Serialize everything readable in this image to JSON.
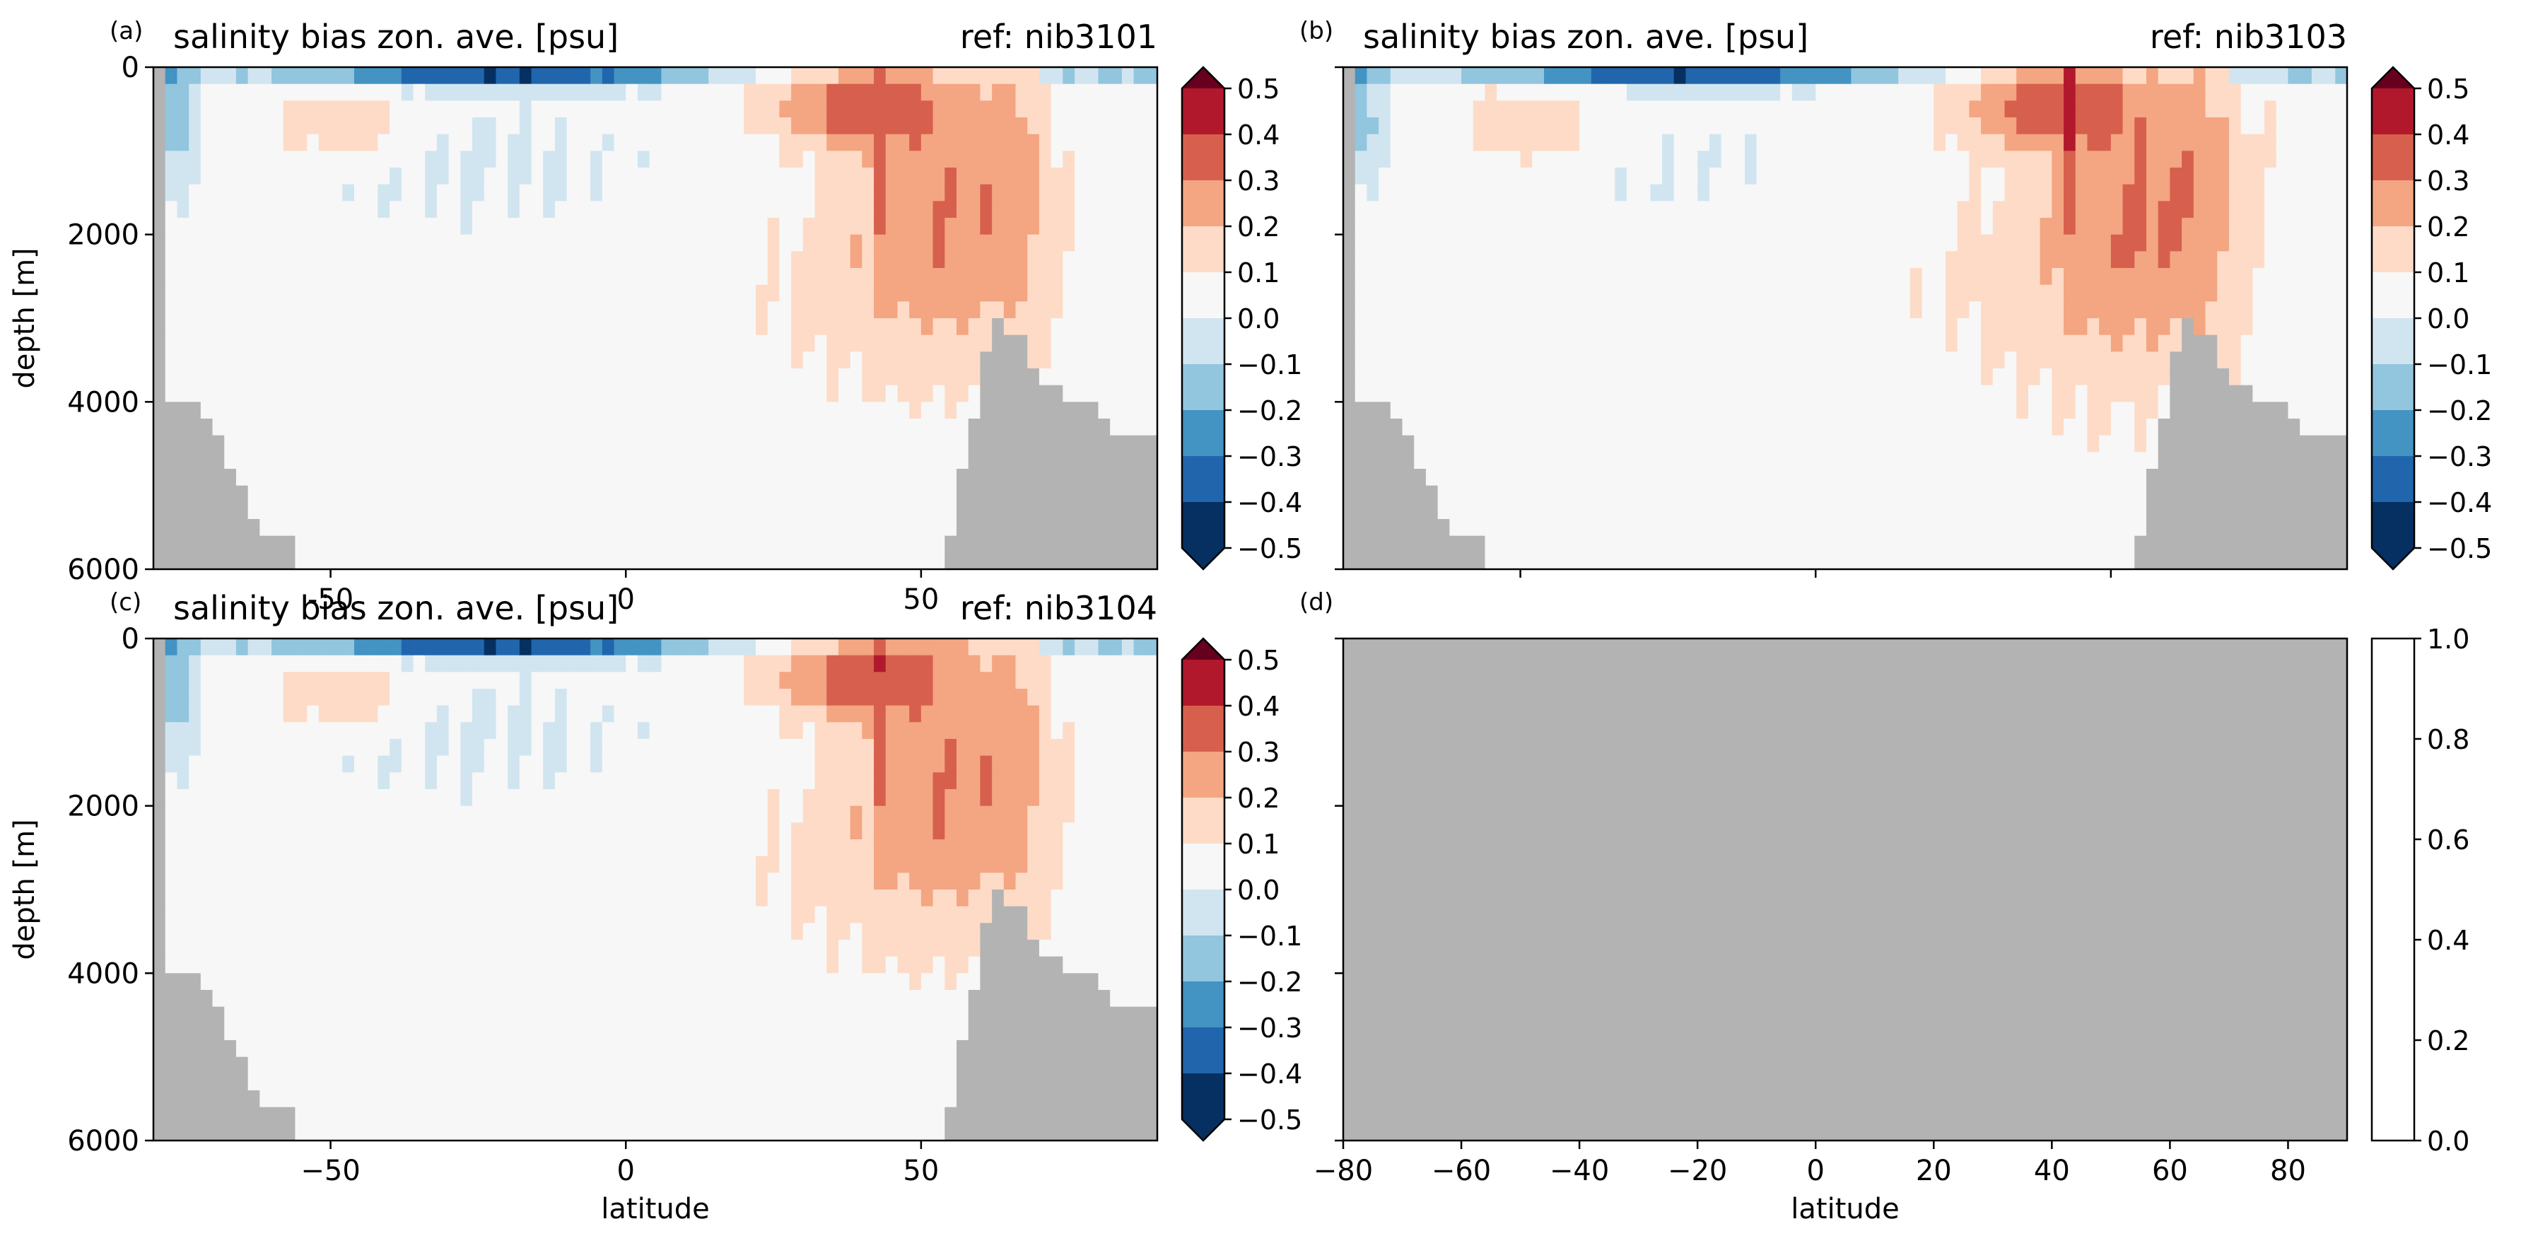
{
  "colors": {
    "land": "#b3b3b3",
    "rdbu_11": [
      "#053061",
      "#2166ac",
      "#4393c3",
      "#92c5de",
      "#d1e5f0",
      "#f7f7f7",
      "#fddbc7",
      "#f4a582",
      "#d6604d",
      "#b2182b",
      "#67001f"
    ]
  },
  "chart_data": [
    {
      "panel": "(a)",
      "type": "heatmap",
      "title": "salinity bias zon. ave. [psu]",
      "subtitle": "ref: nib3101",
      "xlabel": "",
      "ylabel": "depth [m]",
      "xlim": [
        -80,
        90
      ],
      "ylim": [
        6000,
        0
      ],
      "x_ticks": [
        "-50",
        "0",
        "50"
      ],
      "y_ticks": [
        "0",
        "2000",
        "4000",
        "6000"
      ],
      "colorbar": {
        "range": [
          -0.5,
          0.5
        ],
        "ticks": [
          "0.5",
          "0.4",
          "0.3",
          "0.2",
          "0.1",
          "0.0",
          "−0.1",
          "−0.2",
          "−0.3",
          "−0.4",
          "−0.5"
        ],
        "extend": "both"
      }
    },
    {
      "panel": "(b)",
      "type": "heatmap",
      "title": "salinity bias zon. ave. [psu]",
      "subtitle": "ref: nib3103",
      "xlabel": "",
      "ylabel": "",
      "xlim": [
        -80,
        90
      ],
      "ylim": [
        6000,
        0
      ],
      "x_ticks": [],
      "y_ticks": [],
      "colorbar": {
        "range": [
          -0.5,
          0.5
        ],
        "ticks": [
          "0.5",
          "0.4",
          "0.3",
          "0.2",
          "0.1",
          "0.0",
          "−0.1",
          "−0.2",
          "−0.3",
          "−0.4",
          "−0.5"
        ],
        "extend": "both"
      }
    },
    {
      "panel": "(c)",
      "type": "heatmap",
      "title": "salinity bias zon. ave. [psu]",
      "subtitle": "ref: nib3104",
      "xlabel": "latitude",
      "ylabel": "depth [m]",
      "xlim": [
        -80,
        90
      ],
      "ylim": [
        6000,
        0
      ],
      "x_ticks": [
        "−50",
        "0",
        "50"
      ],
      "y_ticks": [
        "0",
        "2000",
        "4000",
        "6000"
      ],
      "colorbar": {
        "range": [
          -0.5,
          0.5
        ],
        "ticks": [
          "0.5",
          "0.4",
          "0.3",
          "0.2",
          "0.1",
          "0.0",
          "−0.1",
          "−0.2",
          "−0.3",
          "−0.4",
          "−0.5"
        ],
        "extend": "both"
      }
    },
    {
      "panel": "(d)",
      "type": "heatmap",
      "title": "",
      "subtitle": "",
      "xlabel": "latitude",
      "ylabel": "",
      "xlim": [
        -80,
        90
      ],
      "ylim": [
        6000,
        0
      ],
      "x_ticks": [
        "−80",
        "−60",
        "−40",
        "−20",
        "0",
        "20",
        "40",
        "60",
        "80"
      ],
      "y_ticks": [],
      "empty": true,
      "colorbar": {
        "range": [
          0.0,
          1.0
        ],
        "ticks": [
          "1.0",
          "0.8",
          "0.6",
          "0.4",
          "0.2",
          "0.0"
        ],
        "extend": "neither"
      }
    }
  ]
}
